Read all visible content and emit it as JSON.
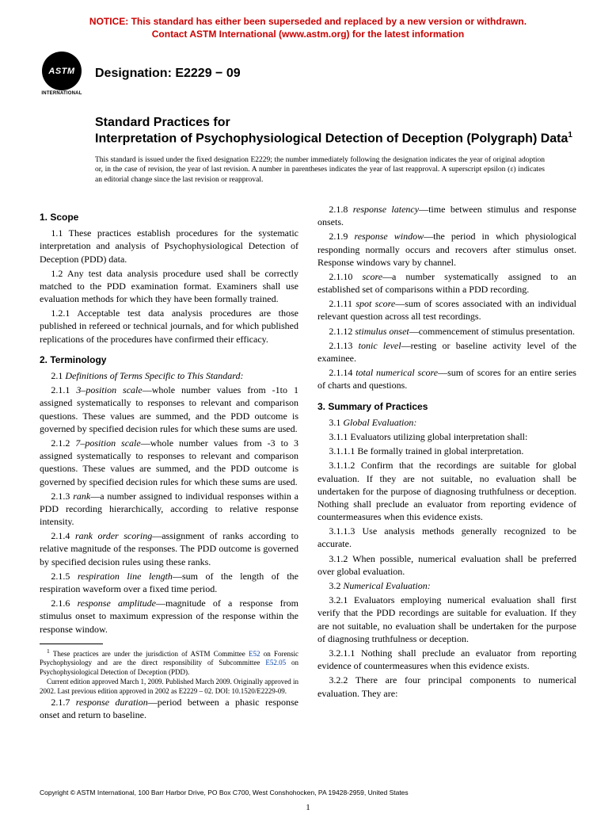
{
  "notice_line1": "NOTICE: This standard has either been superseded and replaced by a new version or withdrawn.",
  "notice_line2": "Contact ASTM International (www.astm.org) for the latest information",
  "logo_text": "ASTM",
  "logo_sub": "INTERNATIONAL",
  "designation": "Designation: E2229 − 09",
  "title_prefix": "Standard Practices for",
  "title_main": "Interpretation of Psychophysiological Detection of Deception (Polygraph) Data",
  "title_super": "1",
  "issuance": "This standard is issued under the fixed designation E2229; the number immediately following the designation indicates the year of original adoption or, in the case of revision, the year of last revision. A number in parentheses indicates the year of last reapproval. A superscript epsilon (ε) indicates an editorial change since the last revision or reapproval.",
  "s1_head": "1. Scope",
  "s1_1": "1.1 These practices establish procedures for the systematic interpretation and analysis of Psychophysiological Detection of Deception (PDD) data.",
  "s1_2": "1.2 Any test data analysis procedure used shall be correctly matched to the PDD examination format. Examiners shall use evaluation methods for which they have been formally trained.",
  "s1_2_1": "1.2.1 Acceptable test data analysis procedures are those published in refereed or technical journals, and for which published replications of the procedures have confirmed their efficacy.",
  "s2_head": "2. Terminology",
  "s2_1_label": "2.1 ",
  "s2_1_term": "Definitions of Terms Specific to This Standard:",
  "s2_1_1_label": "2.1.1 ",
  "s2_1_1_term": "3–position scale",
  "s2_1_1_body": "—whole number values from -1to 1 assigned systematically to responses to relevant and comparison questions. These values are summed, and the PDD outcome is governed by specified decision rules for which these sums are used.",
  "s2_1_2_label": "2.1.2 ",
  "s2_1_2_term": "7–position scale",
  "s2_1_2_body": "—whole number values from -3 to 3 assigned systematically to responses to relevant and comparison questions. These values are summed, and the PDD outcome is governed by specified decision rules for which these sums are used.",
  "s2_1_3_label": "2.1.3 ",
  "s2_1_3_term": "rank",
  "s2_1_3_body": "—a number assigned to individual responses within a PDD recording hierarchically, according to relative response intensity.",
  "s2_1_4_label": "2.1.4 ",
  "s2_1_4_term": "rank order scoring",
  "s2_1_4_body": "—assignment of ranks according to relative magnitude of the responses. The PDD outcome is governed by specified decision rules using these ranks.",
  "s2_1_5_label": "2.1.5 ",
  "s2_1_5_term": "respiration line length",
  "s2_1_5_body": "—sum of the length of the respiration waveform over a fixed time period.",
  "s2_1_6_label": "2.1.6 ",
  "s2_1_6_term": "response amplitude",
  "s2_1_6_body": "—magnitude of a response from stimulus onset to maximum expression of the response within the response window.",
  "s2_1_7_label": "2.1.7 ",
  "s2_1_7_term": "response duration",
  "s2_1_7_body": "—period between a phasic response onset and return to baseline.",
  "s2_1_8_label": "2.1.8 ",
  "s2_1_8_term": "response latency",
  "s2_1_8_body": "—time between stimulus and response onsets.",
  "s2_1_9_label": "2.1.9 ",
  "s2_1_9_term": "response window",
  "s2_1_9_body": "—the period in which physiological responding normally occurs and recovers after stimulus onset. Response windows vary by channel.",
  "s2_1_10_label": "2.1.10 ",
  "s2_1_10_term": "score",
  "s2_1_10_body": "—a number systematically assigned to an established set of comparisons within a PDD recording.",
  "s2_1_11_label": "2.1.11 ",
  "s2_1_11_term": "spot score",
  "s2_1_11_body": "—sum of scores associated with an individual relevant question across all test recordings.",
  "s2_1_12_label": "2.1.12 ",
  "s2_1_12_term": "stimulus onset",
  "s2_1_12_body": "—commencement of stimulus presentation.",
  "s2_1_13_label": "2.1.13 ",
  "s2_1_13_term": "tonic level",
  "s2_1_13_body": "—resting or baseline activity level of the examinee.",
  "s2_1_14_label": "2.1.14 ",
  "s2_1_14_term": "total numerical score",
  "s2_1_14_body": "—sum of scores for an entire series of charts and questions.",
  "s3_head": "3. Summary of Practices",
  "s3_1_label": "3.1 ",
  "s3_1_term": "Global Evaluation:",
  "s3_1_1": "3.1.1 Evaluators utilizing global interpretation shall:",
  "s3_1_1_1": "3.1.1.1 Be formally trained in global interpretation.",
  "s3_1_1_2": "3.1.1.2 Confirm that the recordings are suitable for global evaluation. If they are not suitable, no evaluation shall be undertaken for the purpose of diagnosing truthfulness or deception. Nothing shall preclude an evaluator from reporting evidence of countermeasures when this evidence exists.",
  "s3_1_1_3": "3.1.1.3 Use analysis methods generally recognized to be accurate.",
  "s3_1_2": "3.1.2 When possible, numerical evaluation shall be preferred over global evaluation.",
  "s3_2_label": "3.2 ",
  "s3_2_term": "Numerical Evaluation:",
  "s3_2_1": "3.2.1 Evaluators employing numerical evaluation shall first verify that the PDD recordings are suitable for evaluation. If they are not suitable, no evaluation shall be undertaken for the purpose of diagnosing truthfulness or deception.",
  "s3_2_1_1": "3.2.1.1 Nothing shall preclude an evaluator from reporting evidence of countermeasures when this evidence exists.",
  "s3_2_2": "3.2.2 There are four principal components to numerical evaluation. They are:",
  "footnote_pre": " These practices are under the jurisdiction of ASTM Committee ",
  "footnote_link1": "E52",
  "footnote_mid": " on Forensic Psychophysiology and are the direct responsibility of Subcommittee ",
  "footnote_link2": "E52.05",
  "footnote_post": " on Psychophysiological Detection of Deception (PDD).",
  "footnote2": "Current edition approved March 1, 2009. Published March 2009. Originally approved in 2002. Last previous edition approved in 2002 as E2229 – 02. DOI: 10.1520/E2229-09.",
  "copyright": "Copyright © ASTM International, 100 Barr Harbor Drive, PO Box C700, West Conshohocken, PA 19428-2959, United States",
  "pagenum": "1"
}
